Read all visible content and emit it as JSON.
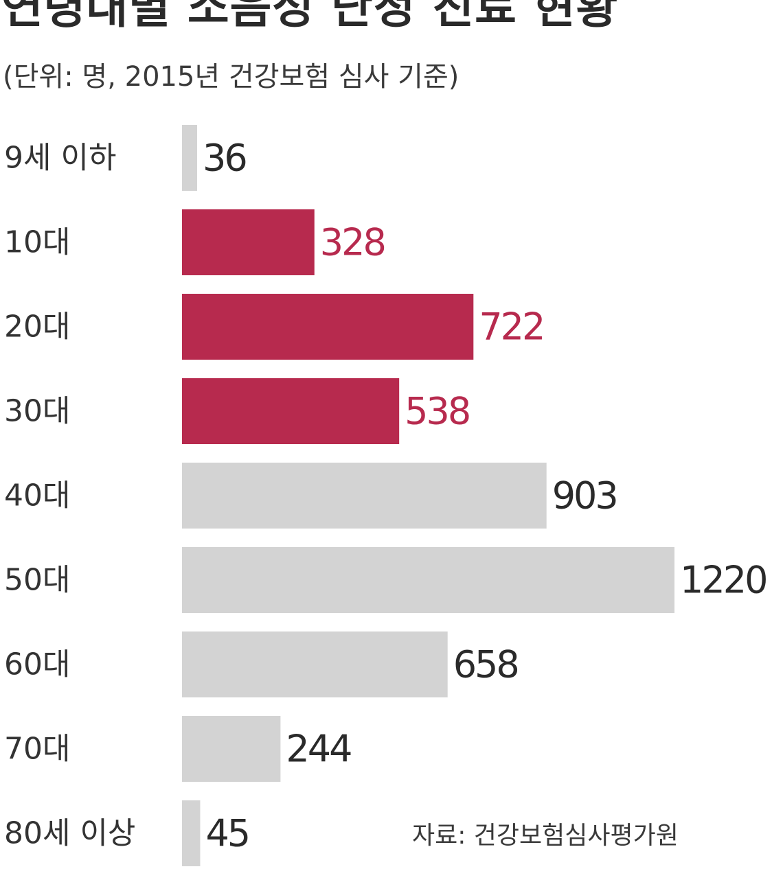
{
  "title": "연령대별 소음성 난청 진료 현황",
  "subtitle": "(단위: 명, 2015년 건강보험 심사 기준)",
  "source": "자료: 건강보험심사평가원",
  "colors": {
    "highlight": "#b72a4e",
    "normal": "#d3d3d3",
    "label_normal": "#2a2a2a"
  },
  "chart_data": {
    "type": "bar",
    "orientation": "horizontal",
    "categories": [
      "9세 이하",
      "10대",
      "20대",
      "30대",
      "40대",
      "50대",
      "60대",
      "70대",
      "80세 이상"
    ],
    "values": [
      36,
      328,
      722,
      538,
      903,
      1220,
      658,
      244,
      45
    ],
    "highlighted": [
      false,
      true,
      true,
      true,
      false,
      false,
      false,
      false,
      false
    ],
    "xlim": [
      0,
      1220
    ],
    "grid": false,
    "title": "연령대별 소음성 난청 진료 현황",
    "xlabel": "",
    "ylabel": ""
  }
}
